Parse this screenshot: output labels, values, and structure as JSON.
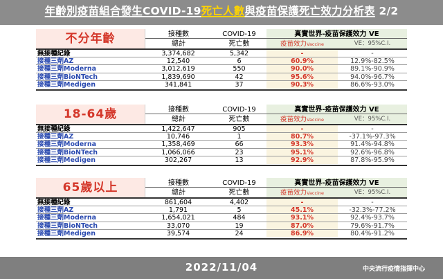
{
  "header": {
    "title_pre": "年齡別疫苗組合發生COVID-19",
    "title_hl": "死亡人數",
    "title_mid": "與疫苗保護死亡效力分析表",
    "title_page": "2/2"
  },
  "columns": {
    "count_l1": "接種數",
    "count_l2": "總計",
    "death_l1": "COVID-19",
    "death_l2": "死亡數",
    "ve_l1": "真實世界-疫苗保護效力 VE",
    "ve_l2_main": "疫苗效力",
    "ve_l2_sub": "Vaccine Effectiveness",
    "ci_l2": "VE：95%C.I."
  },
  "sections": [
    {
      "group": "不分年齡",
      "rows": [
        {
          "name": "無接種紀錄",
          "count": "3,374,682",
          "death": "5,342",
          "ve": "-",
          "ci": "-"
        },
        {
          "name": "接種三劑AZ",
          "count": "12,540",
          "death": "6",
          "ve": "60.9%",
          "ci": "12.9%-82.5%"
        },
        {
          "name": "接種三劑Moderna",
          "count": "3,012,619",
          "death": "550",
          "ve": "90.0%",
          "ci": "89.1%-90.9%"
        },
        {
          "name": "接種三劑BioNTech",
          "count": "1,839,690",
          "death": "42",
          "ve": "95.6%",
          "ci": "94.0%-96.7%"
        },
        {
          "name": "接種三劑Medigen",
          "count": "341,841",
          "death": "37",
          "ve": "90.3%",
          "ci": "86.6%-93.0%"
        }
      ]
    },
    {
      "group": "18-64歲",
      "rows": [
        {
          "name": "無接種紀錄",
          "count": "1,422,647",
          "death": "905",
          "ve": "-",
          "ci": "-"
        },
        {
          "name": "接種三劑AZ",
          "count": "10,746",
          "death": "1",
          "ve": "80.7%",
          "ci": "-37.1%-97.3%"
        },
        {
          "name": "接種三劑Moderna",
          "count": "1,358,469",
          "death": "66",
          "ve": "93.3%",
          "ci": "91.4%-94.8%"
        },
        {
          "name": "接種三劑BioNTech",
          "count": "1,066,066",
          "death": "23",
          "ve": "95.1%",
          "ci": "92.6%-96.8%"
        },
        {
          "name": "接種三劑Medigen",
          "count": "302,267",
          "death": "13",
          "ve": "92.9%",
          "ci": "87.8%-95.9%"
        }
      ]
    },
    {
      "group": "65歲以上",
      "rows": [
        {
          "name": "無接種紀錄",
          "count": "861,604",
          "death": "4,402",
          "ve": "-",
          "ci": "-"
        },
        {
          "name": "接種三劑AZ",
          "count": "1,791",
          "death": "5",
          "ve": "45.1%",
          "ci": "-32.3%-77.2%"
        },
        {
          "name": "接種三劑Moderna",
          "count": "1,654,021",
          "death": "484",
          "ve": "93.1%",
          "ci": "92.4%-93.7%"
        },
        {
          "name": "接種三劑BioNTech",
          "count": "33,070",
          "death": "19",
          "ve": "87.0%",
          "ci": "79.6%-91.7%"
        },
        {
          "name": "接種三劑Medigen",
          "count": "39,574",
          "death": "24",
          "ve": "86.9%",
          "ci": "80.4%-91.2%"
        }
      ]
    }
  ],
  "footer": {
    "date": "2022/11/04",
    "org": "中央流行疫情指揮中心"
  },
  "colors": {
    "header_bg": "#8c8c8c",
    "title_highlight": "#ffd400",
    "group_bg": "#fde9e4",
    "group_text": "#d4372a",
    "vaccine_text": "#2b4bb0",
    "ve_header_bg": "#e8f0e0",
    "footer_bg": "#7f7f7f"
  }
}
